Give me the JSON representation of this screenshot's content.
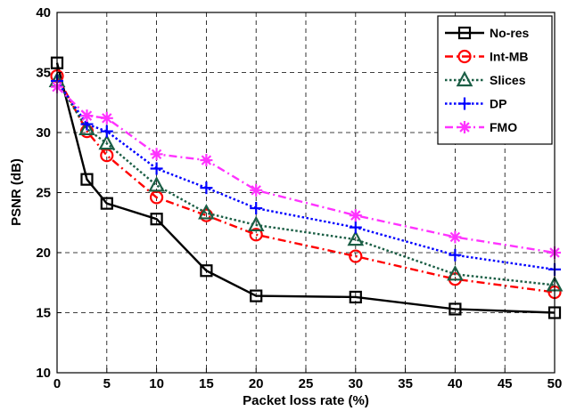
{
  "chart_data": {
    "type": "line",
    "xlabel": "Packet loss rate (%)",
    "ylabel": "PSNR (dB)",
    "xlim": [
      0,
      50
    ],
    "ylim": [
      10,
      40
    ],
    "x_ticks": [
      "0",
      "5",
      "10",
      "15",
      "20",
      "25",
      "30",
      "35",
      "40",
      "45",
      "50"
    ],
    "y_ticks": [
      "10",
      "15",
      "20",
      "25",
      "30",
      "35",
      "40"
    ],
    "grid": true,
    "legend_position": "top-right",
    "x": [
      0,
      3,
      5,
      10,
      15,
      20,
      30,
      40,
      50
    ],
    "series": [
      {
        "name": "No-res",
        "color": "#000000",
        "dash": "solid",
        "marker": "square",
        "values": [
          35.8,
          26.1,
          24.1,
          22.8,
          18.5,
          16.4,
          16.3,
          15.3,
          15.0
        ]
      },
      {
        "name": "Int-MB",
        "color": "#ff0000",
        "dash": "dashdot",
        "marker": "circle",
        "values": [
          34.7,
          30.1,
          28.1,
          24.6,
          23.1,
          21.5,
          19.7,
          17.8,
          16.7
        ]
      },
      {
        "name": "Slices",
        "color": "#1b5e45",
        "dash": "dotted",
        "marker": "triangle",
        "values": [
          34.3,
          30.3,
          29.1,
          25.6,
          23.3,
          22.3,
          21.1,
          18.2,
          17.3
        ]
      },
      {
        "name": "DP",
        "color": "#0000ff",
        "dash": "dotted",
        "marker": "plus",
        "values": [
          34.3,
          30.7,
          30.1,
          27.0,
          25.4,
          23.7,
          22.1,
          19.8,
          18.6
        ]
      },
      {
        "name": "FMO",
        "color": "#ff33ff",
        "dash": "dashdot",
        "marker": "star",
        "values": [
          33.8,
          31.4,
          31.2,
          28.2,
          27.7,
          25.2,
          23.1,
          21.3,
          20.0
        ]
      }
    ]
  }
}
